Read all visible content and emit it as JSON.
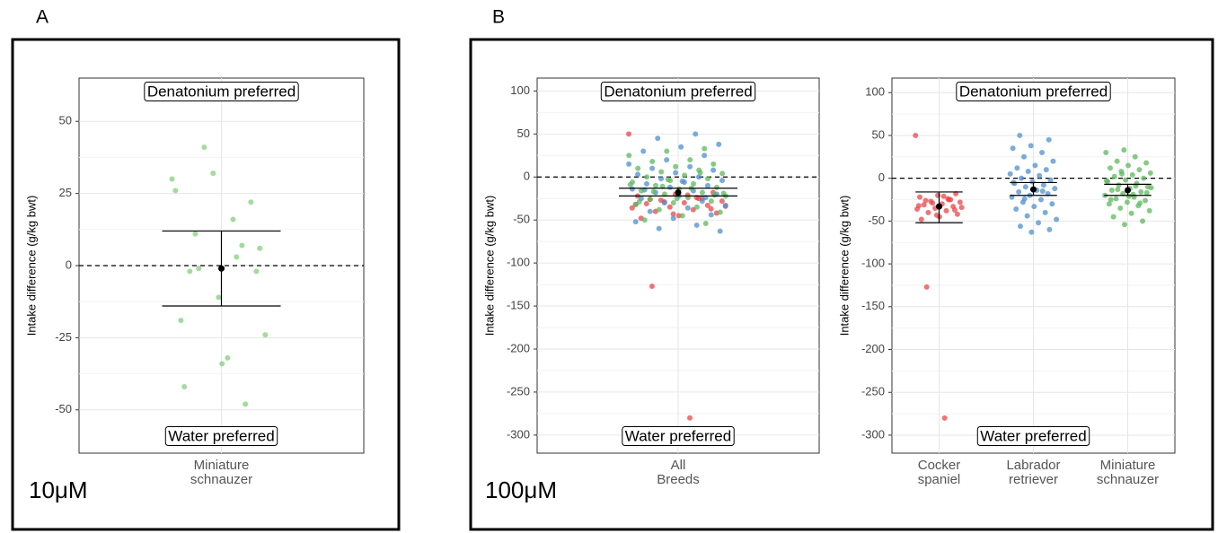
{
  "chart_data": [
    {
      "type": "strip",
      "panel": "A",
      "concentration": "10μM",
      "ylabel": "Intake difference (g/kg bwt)",
      "annotations": [
        "Denatonium preferred",
        "Water preferred"
      ],
      "hline": 0,
      "ylim": [
        -65,
        65
      ],
      "yticks": [
        -50,
        -25,
        0,
        25,
        50
      ],
      "grid": true,
      "groups": [
        {
          "category": "Miniature\nschnauzer",
          "mean": -1,
          "error_bar": [
            -14,
            12
          ],
          "series": [
            {
              "color": "#84cf7e",
              "values": [
                30,
                16,
                11,
                -2,
                -11,
                -19,
                7,
                41,
                -24,
                -32,
                -2,
                22,
                32,
                26,
                3,
                -1,
                6,
                -34,
                -42,
                -48
              ]
            }
          ]
        }
      ]
    },
    {
      "type": "strip",
      "panel": "B",
      "concentration": "100μM",
      "ylabel": "Intake difference (g/kg bwt)",
      "annotations": [
        "Denatonium preferred",
        "Water preferred"
      ],
      "hline": 0,
      "ylim": [
        -321,
        115
      ],
      "yticks": [
        -300,
        -250,
        -200,
        -150,
        -100,
        -50,
        0,
        50,
        100
      ],
      "grid": true,
      "groups": [
        {
          "category": "All\nBreeds",
          "mean": -18,
          "error_bar": [
            -22,
            -13
          ],
          "series": [
            {
              "color": "#e8474a",
              "values": [
                50,
                -280,
                -127,
                -18,
                -20,
                -22,
                -25,
                -27,
                -28,
                -30,
                -31,
                -33,
                -35,
                -36,
                -38,
                -40,
                -42,
                -45,
                -48,
                -25,
                -29,
                -34,
                -21,
                -26,
                -37,
                -43,
                -32,
                -24
              ]
            },
            {
              "color": "#4f90cd",
              "values": [
                50,
                45,
                38,
                35,
                30,
                25,
                20,
                15,
                12,
                10,
                8,
                5,
                3,
                0,
                -2,
                -4,
                -6,
                -8,
                -10,
                -12,
                -14,
                -16,
                -18,
                -20,
                -22,
                -25,
                -28,
                -30,
                -33,
                -36,
                -40,
                -44,
                -48,
                -52,
                -56,
                -60,
                -63,
                -5,
                -15,
                -24
              ]
            },
            {
              "color": "#5fb85f",
              "values": [
                33,
                30,
                25,
                20,
                18,
                15,
                12,
                10,
                8,
                6,
                4,
                2,
                0,
                -2,
                -4,
                -6,
                -8,
                -10,
                -12,
                -14,
                -16,
                -18,
                -20,
                -22,
                -24,
                -26,
                -28,
                -30,
                -32,
                -35,
                -38,
                -41,
                -45,
                -50,
                -54,
                -3,
                -9,
                -13,
                -17,
                -21,
                -25,
                -29,
                5,
                -11,
                -19
              ]
            }
          ]
        }
      ]
    },
    {
      "type": "strip",
      "ylabel": "Intake difference (g/kg bwt)",
      "annotations": [
        "Denatonium preferred",
        "Water preferred"
      ],
      "hline": 0,
      "ylim": [
        -321,
        117
      ],
      "yticks": [
        -300,
        -250,
        -200,
        -150,
        -100,
        -50,
        0,
        50,
        100
      ],
      "grid": true,
      "groups": [
        {
          "category": "Cocker\nspaniel",
          "mean": -33,
          "error_bar": [
            -52,
            -16
          ],
          "series": [
            {
              "color": "#e8474a",
              "values": [
                50,
                -280,
                -127,
                -18,
                -20,
                -22,
                -25,
                -27,
                -28,
                -30,
                -31,
                -33,
                -35,
                -36,
                -38,
                -40,
                -42,
                -45,
                -48,
                -25,
                -29,
                -34,
                -21,
                -26,
                -37,
                -43,
                -32,
                -24
              ]
            }
          ]
        },
        {
          "category": "Labrador\nretriever",
          "mean": -13,
          "error_bar": [
            -20,
            -5
          ],
          "series": [
            {
              "color": "#4f90cd",
              "values": [
                50,
                45,
                38,
                35,
                30,
                25,
                20,
                15,
                12,
                10,
                8,
                5,
                3,
                0,
                -2,
                -4,
                -6,
                -8,
                -10,
                -12,
                -14,
                -16,
                -18,
                -20,
                -22,
                -25,
                -28,
                -30,
                -33,
                -36,
                -40,
                -44,
                -48,
                -52,
                -56,
                -60,
                -63,
                -5,
                -15,
                -24
              ]
            }
          ]
        },
        {
          "category": "Miniature\nschnauzer",
          "mean": -14,
          "error_bar": [
            -20,
            -7
          ],
          "series": [
            {
              "color": "#5fb85f",
              "values": [
                33,
                30,
                25,
                20,
                18,
                15,
                12,
                10,
                8,
                6,
                4,
                2,
                0,
                -2,
                -4,
                -6,
                -8,
                -10,
                -12,
                -14,
                -16,
                -18,
                -20,
                -22,
                -24,
                -26,
                -28,
                -30,
                -32,
                -35,
                -38,
                -41,
                -45,
                -50,
                -54,
                -3,
                -9,
                -13,
                -17,
                -21,
                -25,
                -29,
                5,
                -11,
                -19
              ]
            }
          ]
        }
      ]
    }
  ]
}
